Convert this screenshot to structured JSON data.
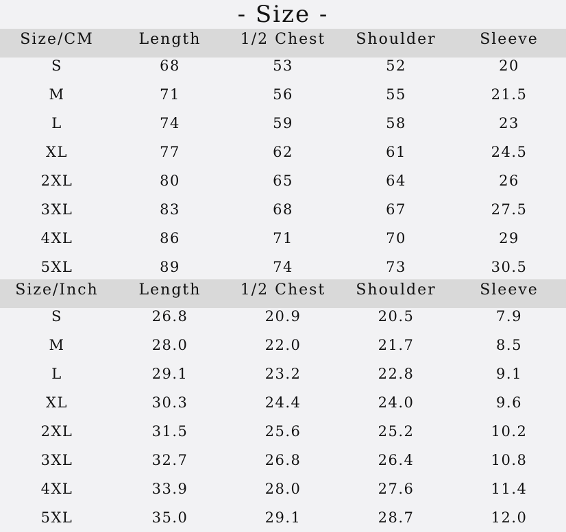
{
  "title": "- Size -",
  "tables": [
    {
      "headers": [
        "Size/CM",
        "Length",
        "1/2 Chest",
        "Shoulder",
        "Sleeve"
      ],
      "rows": [
        [
          "S",
          "68",
          "53",
          "52",
          "20"
        ],
        [
          "M",
          "71",
          "56",
          "55",
          "21.5"
        ],
        [
          "L",
          "74",
          "59",
          "58",
          "23"
        ],
        [
          "XL",
          "77",
          "62",
          "61",
          "24.5"
        ],
        [
          "2XL",
          "80",
          "65",
          "64",
          "26"
        ],
        [
          "3XL",
          "83",
          "68",
          "67",
          "27.5"
        ],
        [
          "4XL",
          "86",
          "71",
          "70",
          "29"
        ],
        [
          "5XL",
          "89",
          "74",
          "73",
          "30.5"
        ]
      ]
    },
    {
      "headers": [
        "Size/Inch",
        "Length",
        "1/2 Chest",
        "Shoulder",
        "Sleeve"
      ],
      "rows": [
        [
          "S",
          "26.8",
          "20.9",
          "20.5",
          "7.9"
        ],
        [
          "M",
          "28.0",
          "22.0",
          "21.7",
          "8.5"
        ],
        [
          "L",
          "29.1",
          "23.2",
          "22.8",
          "9.1"
        ],
        [
          "XL",
          "30.3",
          "24.4",
          "24.0",
          "9.6"
        ],
        [
          "2XL",
          "31.5",
          "25.6",
          "25.2",
          "10.2"
        ],
        [
          "3XL",
          "32.7",
          "26.8",
          "26.4",
          "10.8"
        ],
        [
          "4XL",
          "33.9",
          "28.0",
          "27.6",
          "11.4"
        ],
        [
          "5XL",
          "35.0",
          "29.1",
          "28.7",
          "12.0"
        ]
      ]
    }
  ],
  "colors": {
    "background": "#f2f2f4",
    "header_band": "#d9d9d9",
    "text": "#111111"
  }
}
